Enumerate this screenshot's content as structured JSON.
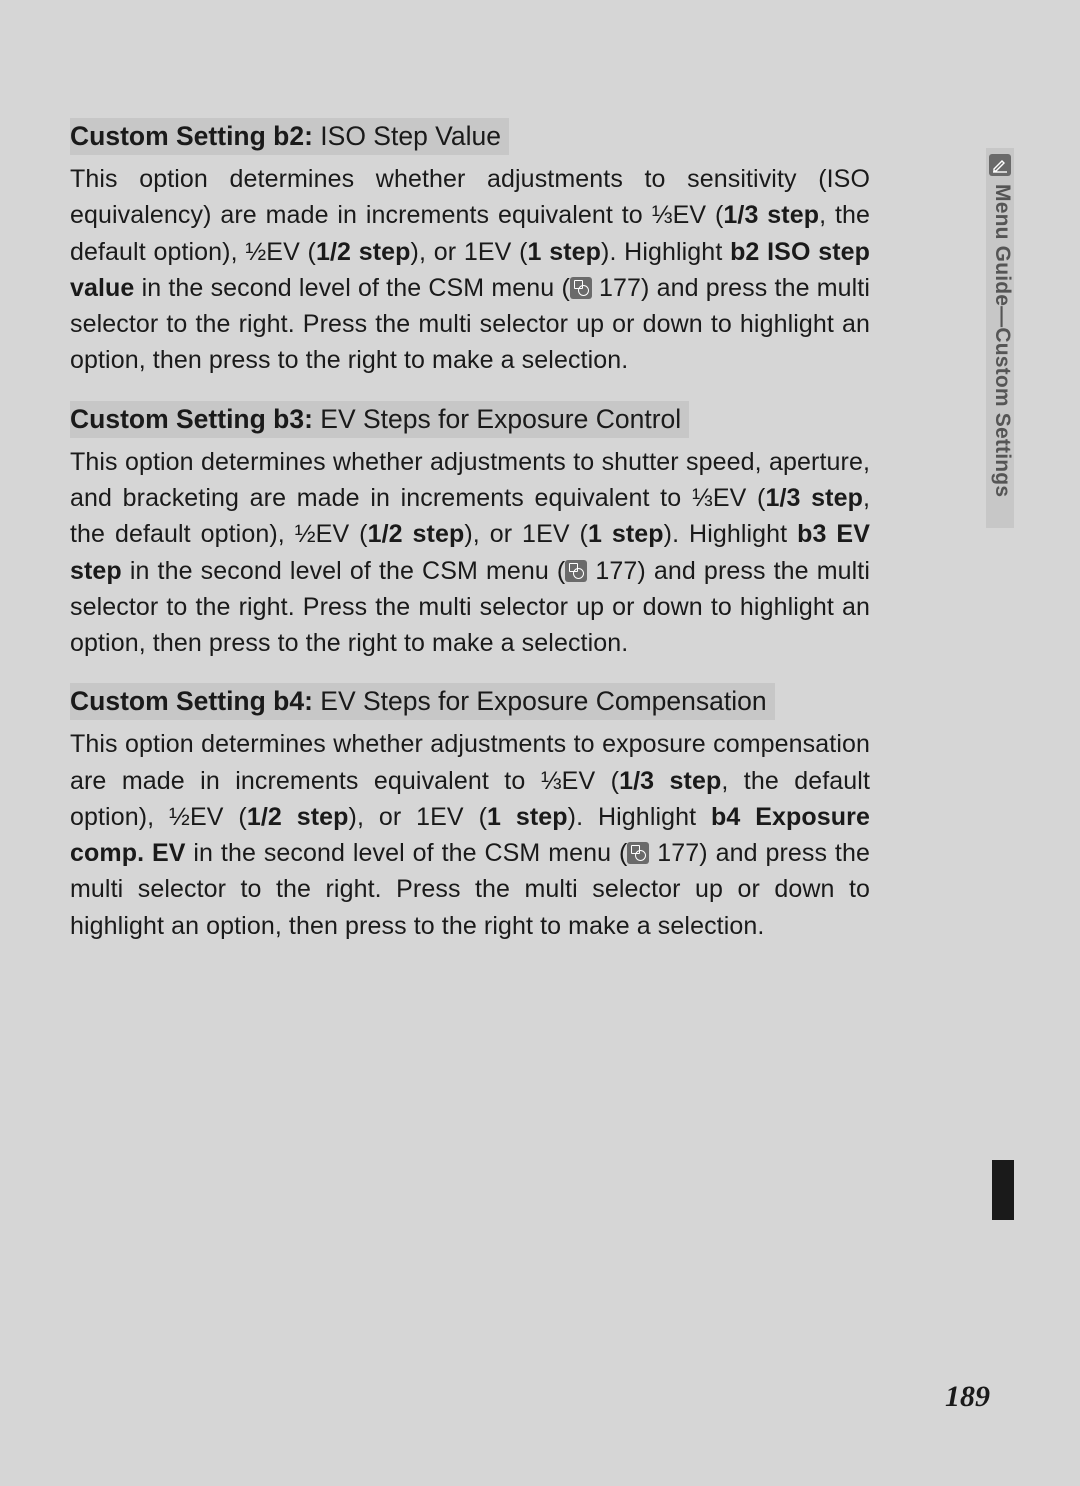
{
  "page": {
    "number": "189",
    "background_color": "#d6d6d6",
    "heading_bg": "#c7c7c7",
    "text_color": "#1a1a1a",
    "body_fontsize": 25,
    "heading_fontsize": 26.5
  },
  "side_tab": {
    "text": "Menu Guide—Custom Settings",
    "icon": "pencil-icon",
    "bg": "#c7c7c7",
    "text_color": "#555555",
    "nub_color": "#1a1a1a"
  },
  "sections": [
    {
      "id": "b2",
      "heading_bold": "Custom Setting b2:",
      "heading_rest": " ISO Step Value",
      "body_html": "This option determines whether adjustments to sensitivity (ISO equivalency) are made in increments equivalent to ⅓EV (<b>1/3 step</b>, the default option), ½EV (<b>1/2 step</b>), or 1EV (<b>1 step</b>). Highlight <b>b2 ISO step value</b> in the second level of the CSM menu (<span class=\"ref-icon\" data-name=\"page-ref-icon\" data-interactable=\"false\"></span> 177) and press the multi selector to the right. Press the multi selector up or down to highlight an option, then press to the right to make a selection."
    },
    {
      "id": "b3",
      "heading_bold": "Custom Setting b3:",
      "heading_rest": " EV Steps for Exposure Control",
      "body_html": "This option determines whether adjustments to shutter speed, aperture, and bracketing are made in increments equivalent to ⅓EV (<b>1/3 step</b>, the default option), ½EV (<b>1/2 step</b>), or 1EV (<b>1 step</b>). Highlight <b>b3 EV step</b> in the second level of the CSM menu (<span class=\"ref-icon\" data-name=\"page-ref-icon\" data-interactable=\"false\"></span> 177) and press the multi selector to the right. Press the multi selector up or down to highlight an option, then press to the right to make a selection."
    },
    {
      "id": "b4",
      "heading_bold": "Custom Setting b4:",
      "heading_rest": " EV Steps for Exposure Compensation",
      "body_html": "This option determines whether adjustments to exposure compensation are made in increments equivalent to ⅓EV (<b>1/3 step</b>, the default option), ½EV (<b>1/2 step</b>), or 1EV (<b>1 step</b>). Highlight <b>b4 Exposure comp. EV</b> in the second level of the CSM menu (<span class=\"ref-icon\" data-name=\"page-ref-icon\" data-interactable=\"false\"></span> 177) and press the multi selector to the right. Press the multi selector up or down to highlight an option, then press to the right to make a selection."
    }
  ]
}
